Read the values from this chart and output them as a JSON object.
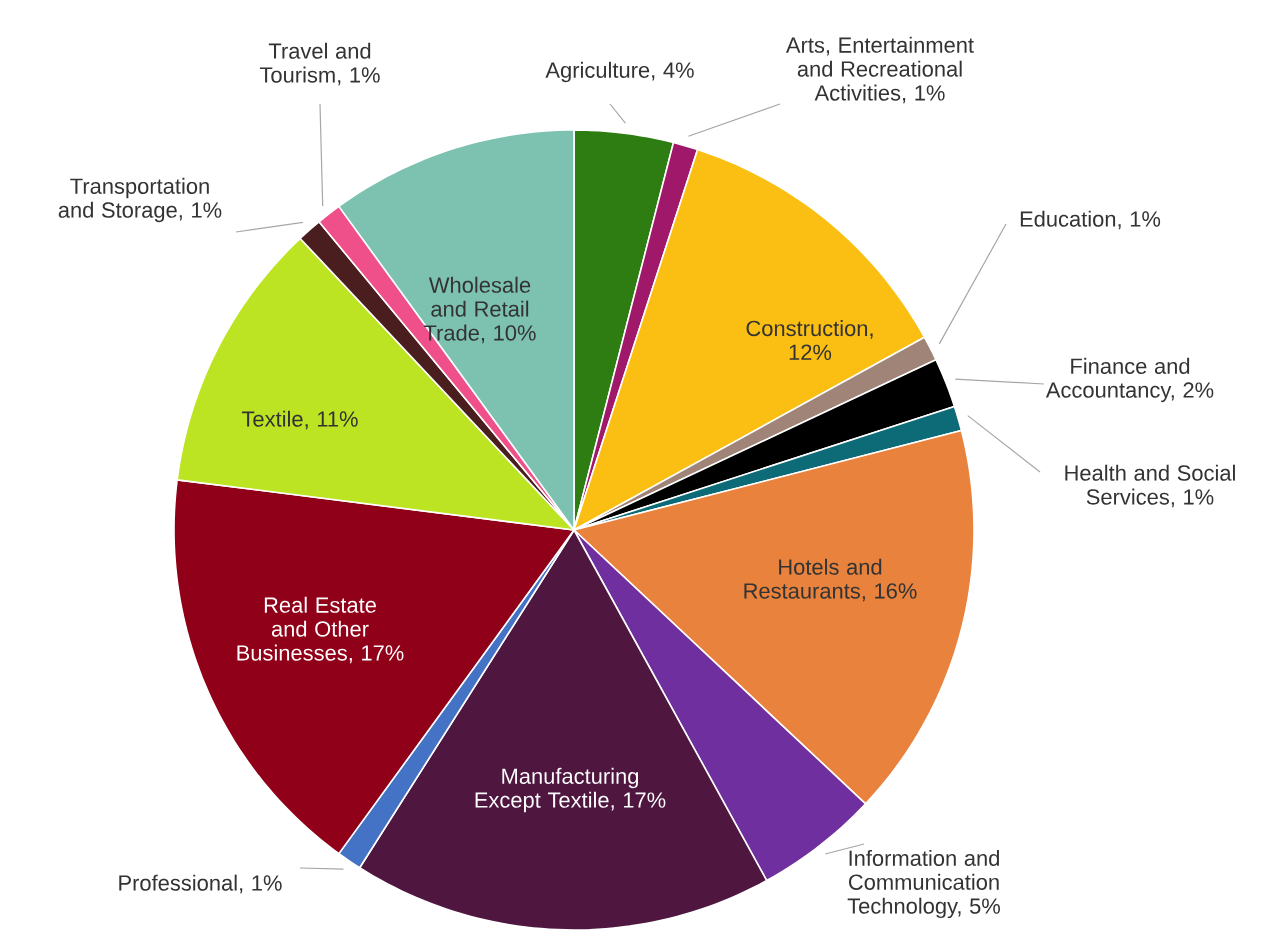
{
  "chart_data": {
    "type": "pie",
    "categories": [
      "Agriculture, 4%",
      "Arts, Entertainment and Recreational Activities, 1%",
      "Construction, 12%",
      "Education, 1%",
      "Finance and Accountancy, 2%",
      "Health and Social Services, 1%",
      "Hotels and Restaurants, 16%",
      "Information and Communication Technology, 5%",
      "Manufacturing Except Textile, 17%",
      "Professional, 1%",
      "Real Estate and Other Businesses, 17%",
      "Textile, 11%",
      "Transportation and Storage, 1%",
      "Travel and Tourism, 1%",
      "Wholesale and Retail Trade, 10%"
    ],
    "values": [
      4,
      1,
      12,
      1,
      2,
      1,
      16,
      5,
      17,
      1,
      17,
      11,
      1,
      1,
      10
    ],
    "colors": [
      "#2e7d12",
      "#a0186a",
      "#fbbf14",
      "#a08478",
      "#000000",
      "#0d6b78",
      "#e8823c",
      "#6f2f9f",
      "#4f1640",
      "#4472c4",
      "#900018",
      "#bde423",
      "#4a1e1e",
      "#f0508a",
      "#7dc2b0"
    ]
  }
}
